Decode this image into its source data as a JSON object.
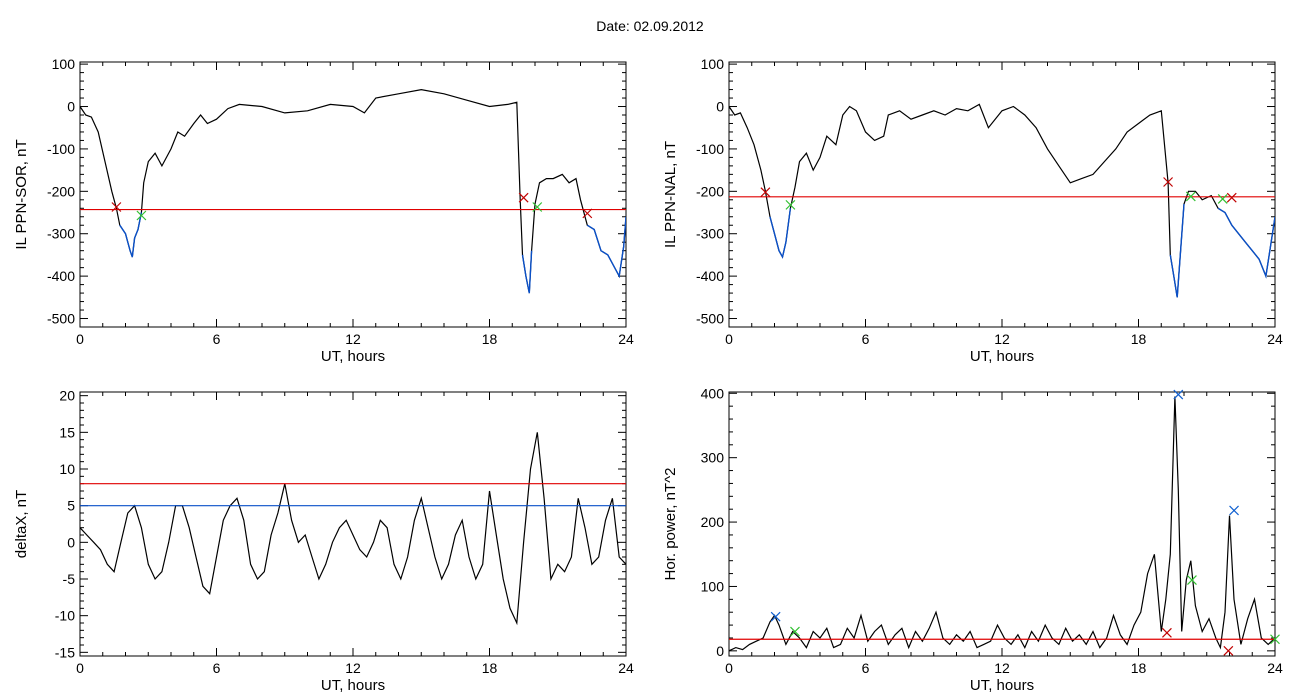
{
  "figure_title": "Date:  02.09.2012",
  "colors": {
    "trace": "#000000",
    "threshold": "#e00000",
    "highlight": "#0a50c8",
    "marker_red": "#c00000",
    "marker_green": "#30c030",
    "marker_blue": "#1060d0"
  },
  "chart_data": [
    {
      "type": "line",
      "title": "",
      "xlabel": "UT, hours",
      "ylabel": "IL PPN-SOR, nT",
      "xlim": [
        0,
        24
      ],
      "ylim": [
        -520,
        105
      ],
      "xticks": [
        0,
        6,
        12,
        18,
        24
      ],
      "yticks": [
        100,
        0,
        -100,
        -200,
        -300,
        -400,
        -500
      ],
      "grid": false,
      "series": [
        {
          "x": [
            0,
            0.25,
            0.5,
            0.8,
            1.1,
            1.4,
            1.6,
            1.75,
            2.0,
            2.2,
            2.3,
            2.4,
            2.55,
            2.7,
            2.8,
            3.0,
            3.3,
            3.6,
            4.0,
            4.3,
            4.6,
            5.0,
            5.3,
            5.6,
            6.0,
            6.5,
            7.0,
            8.0,
            9.0,
            10.0,
            11.0,
            12.0,
            12.5,
            13.0,
            14.0,
            15.0,
            16.0,
            17.0,
            18.0,
            18.8,
            19.2,
            19.35,
            19.45,
            19.6,
            19.75,
            19.85,
            20.0,
            20.2,
            20.5,
            20.8,
            21.2,
            21.5,
            21.8,
            22.0,
            22.3,
            22.6,
            22.9,
            23.2,
            23.5,
            23.7,
            23.9,
            24.0
          ],
          "y": [
            0,
            -20,
            -25,
            -60,
            -130,
            -200,
            -240,
            -280,
            -300,
            -340,
            -355,
            -310,
            -290,
            -250,
            -180,
            -130,
            -110,
            -140,
            -100,
            -60,
            -70,
            -40,
            -20,
            -40,
            -30,
            -5,
            5,
            0,
            -15,
            -10,
            5,
            0,
            -15,
            20,
            30,
            40,
            30,
            15,
            0,
            5,
            10,
            -220,
            -350,
            -400,
            -440,
            -340,
            -230,
            -180,
            -170,
            -170,
            -160,
            -180,
            -170,
            -220,
            -280,
            -290,
            -340,
            -350,
            -380,
            -400,
            -330,
            -260
          ]
        }
      ],
      "threshold": -243,
      "markers": [
        {
          "x": 1.6,
          "y": -237,
          "color": "red"
        },
        {
          "x": 2.7,
          "y": -257,
          "color": "green"
        },
        {
          "x": 19.5,
          "y": -215,
          "color": "red"
        },
        {
          "x": 20.1,
          "y": -237,
          "color": "green"
        },
        {
          "x": 22.3,
          "y": -252,
          "color": "red"
        }
      ]
    },
    {
      "type": "line",
      "title": "",
      "xlabel": "UT, hours",
      "ylabel": "IL PPN-NAL, nT",
      "xlim": [
        0,
        24
      ],
      "ylim": [
        -520,
        105
      ],
      "xticks": [
        0,
        6,
        12,
        18,
        24
      ],
      "yticks": [
        100,
        0,
        -100,
        -200,
        -300,
        -400,
        -500
      ],
      "grid": false,
      "series": [
        {
          "x": [
            0,
            0.25,
            0.5,
            0.8,
            1.1,
            1.4,
            1.6,
            1.8,
            2.0,
            2.2,
            2.35,
            2.5,
            2.7,
            2.9,
            3.1,
            3.4,
            3.7,
            4.0,
            4.3,
            4.7,
            5.0,
            5.3,
            5.6,
            6.0,
            6.4,
            6.8,
            7.0,
            7.5,
            8.0,
            8.5,
            9.0,
            9.5,
            10.0,
            10.5,
            11.0,
            11.4,
            12.0,
            12.5,
            13.0,
            13.5,
            14.0,
            14.5,
            15.0,
            15.5,
            16.0,
            16.5,
            17.0,
            17.5,
            18.0,
            18.5,
            19.0,
            19.3,
            19.4,
            19.55,
            19.7,
            19.85,
            20.0,
            20.2,
            20.5,
            20.8,
            21.2,
            21.5,
            21.8,
            22.1,
            22.4,
            22.7,
            23.0,
            23.3,
            23.6,
            23.8,
            24.0
          ],
          "y": [
            0,
            -20,
            -15,
            -50,
            -90,
            -150,
            -200,
            -260,
            -300,
            -340,
            -355,
            -320,
            -240,
            -190,
            -130,
            -110,
            -150,
            -120,
            -70,
            -90,
            -20,
            0,
            -10,
            -60,
            -80,
            -70,
            -20,
            -10,
            -30,
            -20,
            -10,
            -20,
            -5,
            -10,
            5,
            -50,
            -10,
            0,
            -20,
            -50,
            -100,
            -140,
            -180,
            -170,
            -160,
            -130,
            -100,
            -60,
            -40,
            -20,
            -10,
            -180,
            -350,
            -400,
            -450,
            -340,
            -230,
            -200,
            -200,
            -220,
            -210,
            -240,
            -250,
            -280,
            -300,
            -320,
            -340,
            -360,
            -400,
            -330,
            -260
          ]
        }
      ],
      "threshold": -213,
      "markers": [
        {
          "x": 1.6,
          "y": -202,
          "color": "red"
        },
        {
          "x": 2.7,
          "y": -232,
          "color": "green"
        },
        {
          "x": 19.3,
          "y": -178,
          "color": "red"
        },
        {
          "x": 20.3,
          "y": -212,
          "color": "green"
        },
        {
          "x": 21.7,
          "y": -218,
          "color": "green"
        },
        {
          "x": 22.1,
          "y": -215,
          "color": "red"
        }
      ]
    },
    {
      "type": "line",
      "title": "",
      "xlabel": "UT, hours",
      "ylabel": "deltaX, nT",
      "xlim": [
        0,
        24
      ],
      "ylim": [
        -15.5,
        20.5
      ],
      "xticks": [
        0,
        6,
        12,
        18,
        24
      ],
      "yticks": [
        20,
        15,
        10,
        5,
        0,
        -5,
        -10,
        -15
      ],
      "grid": false,
      "series": [
        {
          "x": [
            0,
            0.3,
            0.6,
            0.9,
            1.2,
            1.5,
            1.8,
            2.1,
            2.4,
            2.7,
            3.0,
            3.3,
            3.6,
            3.9,
            4.2,
            4.5,
            4.8,
            5.1,
            5.4,
            5.7,
            6.0,
            6.3,
            6.6,
            6.9,
            7.2,
            7.5,
            7.8,
            8.1,
            8.4,
            8.7,
            9.0,
            9.3,
            9.6,
            9.9,
            10.2,
            10.5,
            10.8,
            11.1,
            11.4,
            11.7,
            12.0,
            12.3,
            12.6,
            12.9,
            13.2,
            13.5,
            13.8,
            14.1,
            14.4,
            14.7,
            15.0,
            15.3,
            15.6,
            15.9,
            16.2,
            16.5,
            16.8,
            17.1,
            17.4,
            17.7,
            18.0,
            18.3,
            18.6,
            18.9,
            19.2,
            19.5,
            19.8,
            20.1,
            20.4,
            20.7,
            21.0,
            21.3,
            21.6,
            21.9,
            22.2,
            22.5,
            22.8,
            23.1,
            23.4,
            23.7,
            24.0
          ],
          "y": [
            2,
            1,
            0,
            -1,
            -3,
            -4,
            0,
            4,
            5,
            2,
            -3,
            -5,
            -4,
            0,
            5,
            5,
            2,
            -2,
            -6,
            -7,
            -2,
            3,
            5,
            6,
            3,
            -3,
            -5,
            -4,
            1,
            4,
            8,
            3,
            0,
            1,
            -2,
            -5,
            -3,
            0,
            2,
            3,
            1,
            -1,
            -2,
            0,
            3,
            2,
            -3,
            -5,
            -2,
            3,
            6,
            2,
            -2,
            -5,
            -3,
            1,
            3,
            -2,
            -5,
            -3,
            7,
            1,
            -5,
            -9,
            -11,
            0,
            10,
            15,
            6,
            -5,
            -3,
            -4,
            -2,
            6,
            2,
            -3,
            -2,
            3,
            6,
            -2,
            -3
          ]
        }
      ],
      "threshold_red": 8,
      "threshold_blue": 5
    },
    {
      "type": "line",
      "title": "",
      "xlabel": "UT, hours",
      "ylabel": "Hor. power, nT^2",
      "xlim": [
        0,
        24
      ],
      "ylim": [
        -8,
        402
      ],
      "xticks": [
        0,
        6,
        12,
        18,
        24
      ],
      "yticks": [
        400,
        300,
        200,
        100,
        0
      ],
      "grid": false,
      "series": [
        {
          "x": [
            0,
            0.3,
            0.6,
            0.9,
            1.2,
            1.5,
            1.8,
            2.0,
            2.2,
            2.5,
            2.8,
            3.1,
            3.4,
            3.7,
            4.0,
            4.3,
            4.6,
            4.9,
            5.2,
            5.5,
            5.8,
            6.1,
            6.4,
            6.7,
            7.0,
            7.3,
            7.6,
            7.9,
            8.2,
            8.5,
            8.8,
            9.1,
            9.4,
            9.7,
            10.0,
            10.3,
            10.6,
            10.9,
            11.2,
            11.5,
            11.8,
            12.1,
            12.4,
            12.7,
            13.0,
            13.3,
            13.6,
            13.9,
            14.2,
            14.5,
            14.8,
            15.1,
            15.4,
            15.7,
            16.0,
            16.3,
            16.6,
            16.9,
            17.2,
            17.5,
            17.8,
            18.1,
            18.4,
            18.7,
            19.0,
            19.2,
            19.4,
            19.6,
            19.75,
            19.9,
            20.1,
            20.3,
            20.5,
            20.8,
            21.1,
            21.4,
            21.6,
            21.8,
            22.0,
            22.2,
            22.5,
            22.8,
            23.1,
            23.4,
            23.7,
            24.0
          ],
          "y": [
            0,
            5,
            2,
            10,
            15,
            20,
            45,
            55,
            40,
            10,
            30,
            20,
            5,
            30,
            20,
            35,
            5,
            10,
            35,
            20,
            55,
            15,
            30,
            40,
            10,
            25,
            35,
            5,
            30,
            15,
            35,
            60,
            20,
            10,
            25,
            15,
            30,
            5,
            10,
            15,
            40,
            20,
            10,
            25,
            5,
            30,
            15,
            40,
            20,
            10,
            35,
            15,
            25,
            10,
            30,
            5,
            20,
            55,
            25,
            10,
            40,
            60,
            120,
            150,
            30,
            80,
            150,
            395,
            250,
            30,
            110,
            140,
            70,
            30,
            50,
            20,
            5,
            60,
            210,
            80,
            10,
            50,
            80,
            20,
            10,
            20
          ]
        }
      ],
      "threshold": 18,
      "markers": [
        {
          "x": 2.05,
          "y": 53,
          "color": "blue"
        },
        {
          "x": 2.9,
          "y": 30,
          "color": "green"
        },
        {
          "x": 19.25,
          "y": 28,
          "color": "red"
        },
        {
          "x": 19.75,
          "y": 398,
          "color": "blue"
        },
        {
          "x": 20.35,
          "y": 110,
          "color": "green"
        },
        {
          "x": 21.95,
          "y": 0,
          "color": "red"
        },
        {
          "x": 22.2,
          "y": 218,
          "color": "blue"
        },
        {
          "x": 24.0,
          "y": 18,
          "color": "green"
        }
      ]
    }
  ]
}
